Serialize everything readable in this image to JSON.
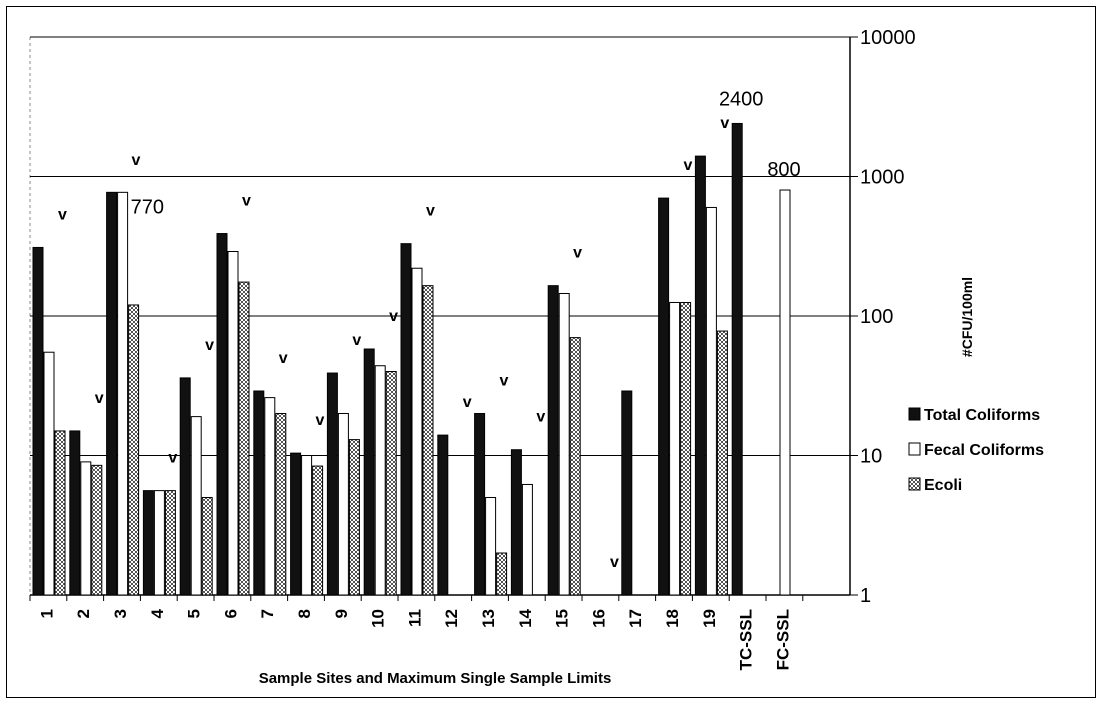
{
  "chart_data": {
    "type": "bar",
    "yscale": "log",
    "ylim": [
      1,
      10000
    ],
    "yticks": [
      "1",
      "10",
      "100",
      "1000",
      "10000"
    ],
    "ylabel": "#CFU/100ml",
    "xlabel": "Sample Sites and Maximum Single Sample Limits",
    "grid": true,
    "legend_position": "right",
    "categories": [
      "1",
      "2",
      "3",
      "4",
      "5",
      "6",
      "7",
      "8",
      "9",
      "10",
      "11",
      "12",
      "13",
      "14",
      "15",
      "16",
      "17",
      "18",
      "19",
      "TC-SSL",
      "FC-SSL"
    ],
    "series": [
      {
        "name": "Total Coliforms",
        "color": "#111111",
        "values": [
          310,
          15,
          770,
          5.6,
          36,
          390,
          29,
          10.4,
          39,
          58,
          330,
          14,
          20,
          11,
          165,
          null,
          29,
          700,
          1400,
          2400,
          null
        ]
      },
      {
        "name": "Fecal Coliforms",
        "color": "#ffffff",
        "values": [
          55,
          9,
          770,
          5.6,
          19,
          290,
          26,
          10,
          20,
          44,
          220,
          null,
          5,
          6.2,
          145,
          null,
          null,
          125,
          600,
          null,
          800
        ]
      },
      {
        "name": "Ecoli",
        "color": "#aaaaaa",
        "values": [
          15,
          8.5,
          120,
          5.6,
          5,
          175,
          20,
          8.4,
          13,
          40,
          165,
          null,
          2,
          null,
          70,
          null,
          null,
          125,
          78,
          null,
          null
        ]
      }
    ],
    "markers": {
      "symbol": "v",
      "sites": [
        "1",
        "2",
        "3",
        "4",
        "5",
        "6",
        "7",
        "8",
        "9",
        "10",
        "11",
        "12",
        "13",
        "14",
        "15",
        "16",
        "18",
        "19"
      ]
    },
    "annotations": [
      "770",
      "2400",
      "800"
    ]
  }
}
